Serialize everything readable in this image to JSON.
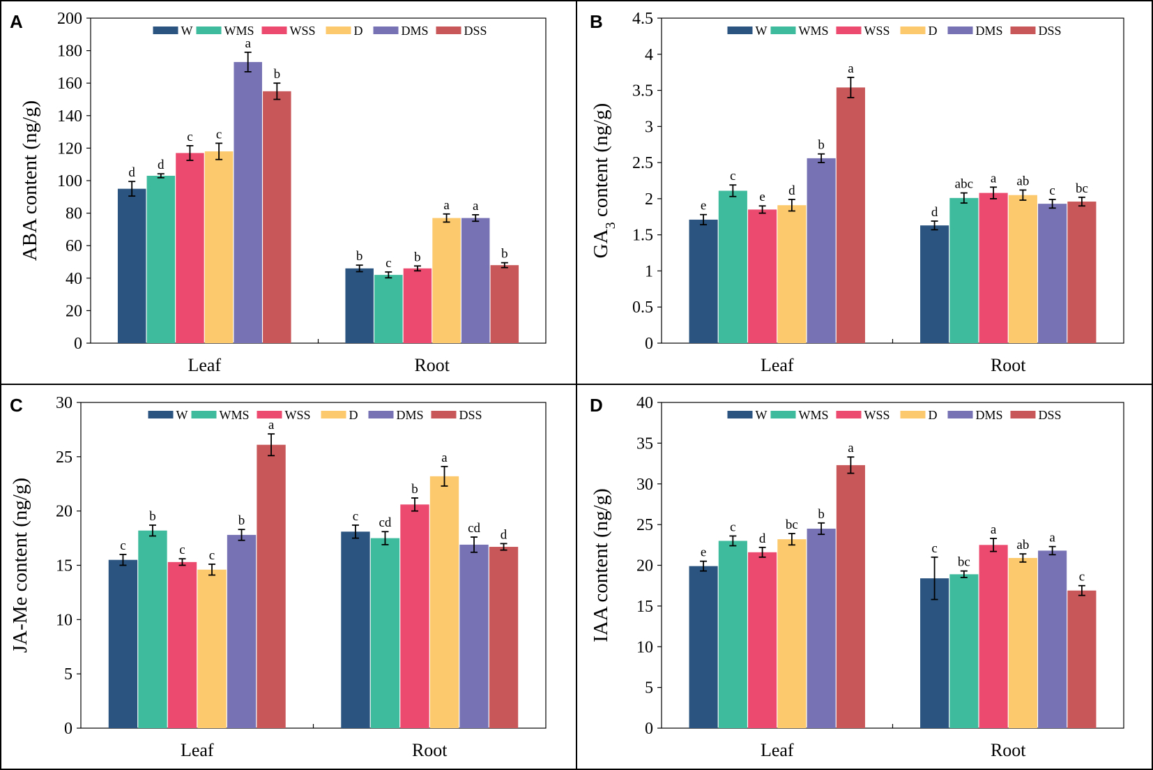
{
  "legend": [
    "W",
    "WMS",
    "WSS",
    "D",
    "DMS",
    "DSS"
  ],
  "colors": [
    "#2b5580",
    "#3dbb9c",
    "#ec4a6e",
    "#fcc96c",
    "#7672b4",
    "#c8575a"
  ],
  "chart_data": [
    {
      "panel": "A",
      "type": "bar",
      "ylabel": "ABA content (ng/g)",
      "ylabel_sub": "",
      "ylabel_rest": "",
      "ylim": [
        0,
        200
      ],
      "yticks": [
        0,
        20,
        40,
        60,
        80,
        100,
        120,
        140,
        160,
        180,
        200
      ],
      "ytick_labels": [
        "0",
        "20",
        "40",
        "60",
        "80",
        "100",
        "120",
        "140",
        "160",
        "180",
        "200"
      ],
      "categories": [
        "Leaf",
        "Root"
      ],
      "series": [
        {
          "name": "W",
          "values": [
            95,
            46
          ],
          "errors": [
            4.5,
            2
          ],
          "letters": [
            "d",
            "b"
          ]
        },
        {
          "name": "WMS",
          "values": [
            103,
            42
          ],
          "errors": [
            1.2,
            1.8
          ],
          "letters": [
            "d",
            "c"
          ]
        },
        {
          "name": "WSS",
          "values": [
            117,
            46
          ],
          "errors": [
            4.5,
            1.5
          ],
          "letters": [
            "c",
            "b"
          ]
        },
        {
          "name": "D",
          "values": [
            118,
            77
          ],
          "errors": [
            5,
            2.5
          ],
          "letters": [
            "c",
            "a"
          ]
        },
        {
          "name": "DMS",
          "values": [
            173,
            77
          ],
          "errors": [
            6,
            2
          ],
          "letters": [
            "a",
            "a"
          ]
        },
        {
          "name": "DSS",
          "values": [
            155,
            48
          ],
          "errors": [
            5,
            1.5
          ],
          "letters": [
            "b",
            "b"
          ]
        }
      ]
    },
    {
      "panel": "B",
      "type": "bar",
      "ylabel": "GA",
      "ylabel_sub": "3",
      "ylabel_rest": " content (ng/g)",
      "ylim": [
        0,
        4.5
      ],
      "yticks": [
        0,
        0.5,
        1,
        1.5,
        2,
        2.5,
        3,
        3.5,
        4,
        4.5
      ],
      "ytick_labels": [
        "0",
        "0.5",
        "1",
        "1.5",
        "2",
        "2.5",
        "3",
        "3.5",
        "4",
        "4.5"
      ],
      "categories": [
        "Leaf",
        "Root"
      ],
      "series": [
        {
          "name": "W",
          "values": [
            1.71,
            1.63
          ],
          "errors": [
            0.07,
            0.06
          ],
          "letters": [
            "e",
            "d"
          ]
        },
        {
          "name": "WMS",
          "values": [
            2.11,
            2.01
          ],
          "errors": [
            0.08,
            0.07
          ],
          "letters": [
            "c",
            "abc"
          ]
        },
        {
          "name": "WSS",
          "values": [
            1.85,
            2.08
          ],
          "errors": [
            0.05,
            0.08
          ],
          "letters": [
            "e",
            "a"
          ]
        },
        {
          "name": "D",
          "values": [
            1.91,
            2.05
          ],
          "errors": [
            0.08,
            0.07
          ],
          "letters": [
            "d",
            "ab"
          ]
        },
        {
          "name": "DMS",
          "values": [
            2.56,
            1.93
          ],
          "errors": [
            0.06,
            0.06
          ],
          "letters": [
            "b",
            "c"
          ]
        },
        {
          "name": "DSS",
          "values": [
            3.54,
            1.96
          ],
          "errors": [
            0.14,
            0.06
          ],
          "letters": [
            "a",
            "bc"
          ]
        }
      ]
    },
    {
      "panel": "C",
      "type": "bar",
      "ylabel": "JA-Me content (ng/g)",
      "ylabel_sub": "",
      "ylabel_rest": "",
      "ylim": [
        0,
        30
      ],
      "yticks": [
        0,
        5,
        10,
        15,
        20,
        25,
        30
      ],
      "ytick_labels": [
        "0",
        "5",
        "10",
        "15",
        "20",
        "25",
        "30"
      ],
      "categories": [
        "Leaf",
        "Root"
      ],
      "series": [
        {
          "name": "W",
          "values": [
            15.5,
            18.1
          ],
          "errors": [
            0.5,
            0.6
          ],
          "letters": [
            "c",
            "c"
          ]
        },
        {
          "name": "WMS",
          "values": [
            18.2,
            17.5
          ],
          "errors": [
            0.5,
            0.6
          ],
          "letters": [
            "b",
            "cd"
          ]
        },
        {
          "name": "WSS",
          "values": [
            15.3,
            20.6
          ],
          "errors": [
            0.3,
            0.6
          ],
          "letters": [
            "c",
            "b"
          ]
        },
        {
          "name": "D",
          "values": [
            14.6,
            23.2
          ],
          "errors": [
            0.5,
            0.9
          ],
          "letters": [
            "c",
            "a"
          ]
        },
        {
          "name": "DMS",
          "values": [
            17.8,
            16.9
          ],
          "errors": [
            0.5,
            0.7
          ],
          "letters": [
            "b",
            "cd"
          ]
        },
        {
          "name": "DSS",
          "values": [
            26.1,
            16.7
          ],
          "errors": [
            1.0,
            0.3
          ],
          "letters": [
            "a",
            "d"
          ]
        }
      ]
    },
    {
      "panel": "D",
      "type": "bar",
      "ylabel": "IAA content (ng/g)",
      "ylabel_sub": "",
      "ylabel_rest": "",
      "ylim": [
        0,
        40
      ],
      "yticks": [
        0,
        5,
        10,
        15,
        20,
        25,
        30,
        35,
        40
      ],
      "ytick_labels": [
        "0",
        "5",
        "10",
        "15",
        "20",
        "25",
        "30",
        "35",
        "40"
      ],
      "categories": [
        "Leaf",
        "Root"
      ],
      "series": [
        {
          "name": "W",
          "values": [
            19.9,
            18.4
          ],
          "errors": [
            0.6,
            2.6
          ],
          "letters": [
            "e",
            "c"
          ]
        },
        {
          "name": "WMS",
          "values": [
            23.0,
            18.9
          ],
          "errors": [
            0.6,
            0.4
          ],
          "letters": [
            "c",
            "bc"
          ]
        },
        {
          "name": "WSS",
          "values": [
            21.6,
            22.5
          ],
          "errors": [
            0.6,
            0.8
          ],
          "letters": [
            "d",
            "a"
          ]
        },
        {
          "name": "D",
          "values": [
            23.2,
            20.9
          ],
          "errors": [
            0.7,
            0.5
          ],
          "letters": [
            "bc",
            "ab"
          ]
        },
        {
          "name": "DMS",
          "values": [
            24.5,
            21.8
          ],
          "errors": [
            0.7,
            0.5
          ],
          "letters": [
            "b",
            "a"
          ]
        },
        {
          "name": "DSS",
          "values": [
            32.3,
            16.9
          ],
          "errors": [
            1.0,
            0.6
          ],
          "letters": [
            "a",
            "c"
          ]
        }
      ]
    }
  ]
}
